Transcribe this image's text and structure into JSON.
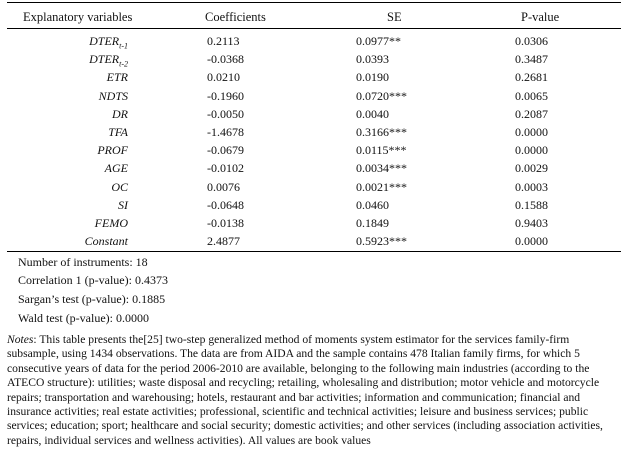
{
  "headers": {
    "variable": "Explanatory variables",
    "coefficients": "Coefficients",
    "se": "SE",
    "pvalue": "P-value"
  },
  "rows": [
    {
      "var_base": "DTER",
      "var_sub": "t-1",
      "coef": "0.2113",
      "se": "0.0977**",
      "p": "0.0306"
    },
    {
      "var_base": "DTER",
      "var_sub": "t-2",
      "coef": "-0.0368",
      "se": "0.0393",
      "p": "0.3487"
    },
    {
      "var_base": "ETR",
      "var_sub": "",
      "coef": "0.0210",
      "se": "0.0190",
      "p": "0.2681"
    },
    {
      "var_base": "NDTS",
      "var_sub": "",
      "coef": "-0.1960",
      "se": "0.0720***",
      "p": "0.0065"
    },
    {
      "var_base": "DR",
      "var_sub": "",
      "coef": "-0.0050",
      "se": "0.0040",
      "p": "0.2087"
    },
    {
      "var_base": "TFA",
      "var_sub": "",
      "coef": "-1.4678",
      "se": "0.3166***",
      "p": "0.0000"
    },
    {
      "var_base": "PROF",
      "var_sub": "",
      "coef": "-0.0679",
      "se": "0.0115***",
      "p": "0.0000"
    },
    {
      "var_base": "AGE",
      "var_sub": "",
      "coef": "-0.0102",
      "se": "0.0034***",
      "p": "0.0029"
    },
    {
      "var_base": "OC",
      "var_sub": "",
      "coef": "0.0076",
      "se": "0.0021***",
      "p": "0.0003"
    },
    {
      "var_base": "SI",
      "var_sub": "",
      "coef": "-0.0648",
      "se": "0.0460",
      "p": "0.1588"
    },
    {
      "var_base": "FEMO",
      "var_sub": "",
      "coef": "-0.0138",
      "se": "0.1849",
      "p": "0.9403"
    },
    {
      "var_base": "Constant",
      "var_sub": "",
      "coef": "2.4877",
      "se": "0.5923***",
      "p": "0.0000"
    }
  ],
  "stats": [
    "Number of instruments: 18",
    "Correlation 1 (p-value): 0.4373",
    "Sargan’s test (p-value): 0.1885",
    "Wald test (p-value): 0.0000"
  ],
  "notes": {
    "label": "Notes",
    "text": ": This table presents the[25] two-step generalized method of moments system estimator for the services family-firm subsample, using 1434 observations. The data are from AIDA and the sample contains 478 Italian family firms, for which 5 consecutive years of data for the period 2006-2010 are available, belonging to the following main industries (according to the ATECO structure): utilities;  waste disposal and recycling;  retailing, wholesaling and distribution; motor vehicle and motorcycle repairs; transportation and warehousing; hotels, restaurant and bar activities; information and communication; financial and insurance activities; real estate activities; professional, scientific and technical activities; leisure and business services; public services; education; sport; healthcare and social security; domestic activities; and other services (including association activities, repairs, individual services and wellness activities). All  values are book values"
  }
}
